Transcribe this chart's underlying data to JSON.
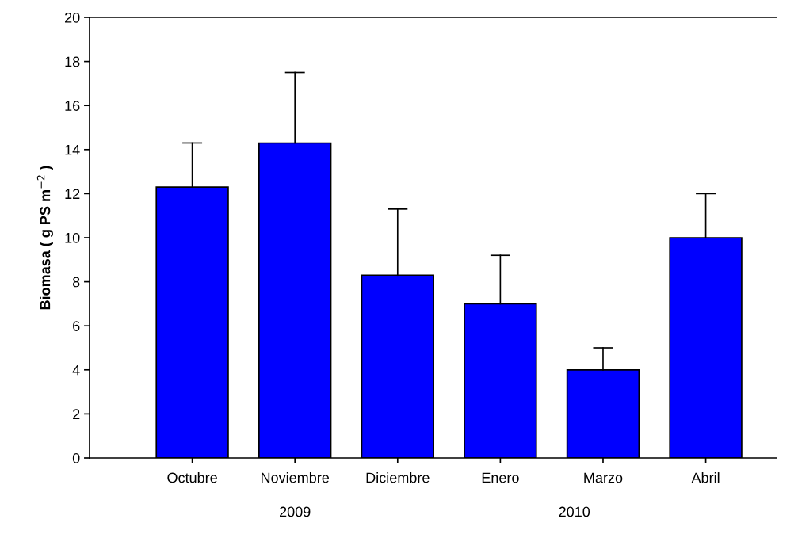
{
  "chart_data": {
    "type": "bar",
    "ylabel": "Biomasa ( g PS m$^{−2}$ )",
    "categories": [
      "Octubre",
      "Noviembre",
      "Diciembre",
      "Enero",
      "Marzo",
      "Abril"
    ],
    "values": [
      12.3,
      14.3,
      8.3,
      7.0,
      4.0,
      10.0
    ],
    "errors": [
      [
        12.3,
        14.3
      ],
      [
        14.3,
        17.5
      ],
      [
        8.3,
        11.3
      ],
      [
        7.0,
        9.2
      ],
      [
        4.0,
        5.0
      ],
      [
        10.0,
        12.0
      ]
    ],
    "color": "#0000ff",
    "ylim": [
      0,
      20
    ],
    "yticks": [
      0,
      2,
      4,
      6,
      8,
      10,
      12,
      14,
      16,
      18,
      20
    ],
    "grid": false,
    "legend": false,
    "annotations": [
      "2009",
      "2010"
    ]
  }
}
